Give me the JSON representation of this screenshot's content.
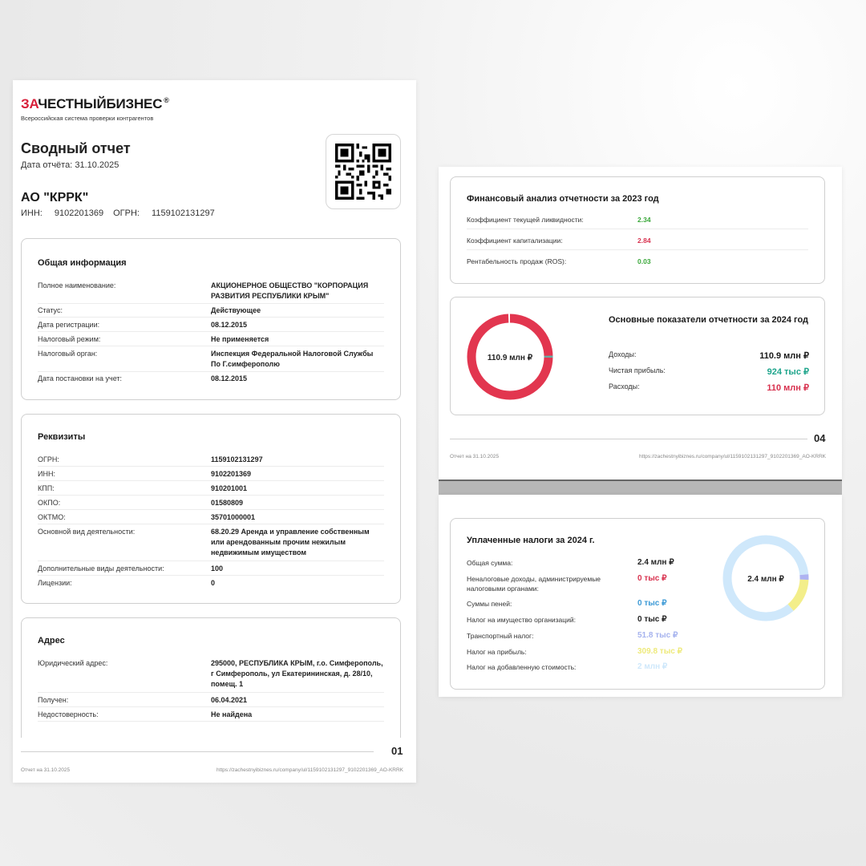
{
  "colors": {
    "brand_red": "#d81f3a",
    "green": "#3aa83a",
    "red": "#d8324f",
    "teal": "#1fa58c",
    "ring_red": "#e2364f",
    "ring_blue": "#cfe8fb",
    "ring_yellow": "#f3ee8a",
    "ring_lav": "#aeb3f1"
  },
  "logo": {
    "za": "ЗА",
    "rest": "ЧЕСТНЫЙБИЗНЕС",
    "reg": "®",
    "subtitle": "Всероссийская система проверки контрагентов"
  },
  "report": {
    "title": "Сводный отчет",
    "date_label": "Дата отчёта:",
    "date_value": "31.10.2025",
    "company": "АО \"КРРК\"",
    "inn_label": "ИНН:",
    "inn_value": "9102201369",
    "ogrn_label": "ОГРН:",
    "ogrn_value": "1159102131297",
    "qr_icon": "qr-code-icon"
  },
  "general": {
    "title": "Общая информация",
    "rows": [
      {
        "label": "Полное наименование:",
        "value": "АКЦИОНЕРНОЕ ОБЩЕСТВО \"КОРПОРАЦИЯ РАЗВИТИЯ РЕСПУБЛИКИ КРЫМ\""
      },
      {
        "label": "Статус:",
        "value": "Действующее"
      },
      {
        "label": "Дата регистрации:",
        "value": "08.12.2015"
      },
      {
        "label": "Налоговый режим:",
        "value": "Не применяется"
      },
      {
        "label": "Налоговый орган:",
        "value": "Инспекция Федеральной Налоговой Службы По Г.симферополю"
      },
      {
        "label": "Дата постановки на учет:",
        "value": "08.12.2015"
      }
    ]
  },
  "requisites": {
    "title": "Реквизиты",
    "rows": [
      {
        "label": "ОГРН:",
        "value": "1159102131297"
      },
      {
        "label": "ИНН:",
        "value": "9102201369"
      },
      {
        "label": "КПП:",
        "value": "910201001"
      },
      {
        "label": "ОКПО:",
        "value": "01580809"
      },
      {
        "label": "ОКТМО:",
        "value": "35701000001"
      },
      {
        "label": "Основной вид деятельности:",
        "value": "68.20.29 Аренда и управление собственным или арендованным прочим нежилым недвижимым имуществом"
      },
      {
        "label": "Дополнительные виды деятельности:",
        "value": "100"
      },
      {
        "label": "Лицензии:",
        "value": "0"
      }
    ]
  },
  "address": {
    "title": "Адрес",
    "rows": [
      {
        "label": "Юридический адрес:",
        "value": "295000, РЕСПУБЛИКА КРЫМ, г.о. Симферополь, г Симферополь, ул Екатерининская, д. 28/10, помещ. 1"
      },
      {
        "label": "Получен:",
        "value": "06.04.2021"
      },
      {
        "label": "Недостоверность:",
        "value": "Не найдена"
      }
    ]
  },
  "page1_footer": {
    "page": "01",
    "left": "Отчет на 31.10.2025",
    "right": "https://zachestnyibiznes.ru/company/ul/1159102131297_9102201369_AO-KRRK"
  },
  "financial": {
    "title": "Финансовый анализ отчетности за 2023 год",
    "rows": [
      {
        "label": "Коэффициент текущей ликвидности:",
        "value": "2.34",
        "tone": "green"
      },
      {
        "label": "Коэффициент капитализации:",
        "value": "2.84",
        "tone": "red"
      },
      {
        "label": "Рентабельность продаж (ROS):",
        "value": "0.03",
        "tone": "green"
      }
    ]
  },
  "key_indicators": {
    "title": "Основные показатели отчетности за 2024 год",
    "center": "110.9 млн ₽",
    "rows": [
      {
        "label": "Доходы:",
        "value": "110.9 млн ₽"
      },
      {
        "label": "Чистая прибыль:",
        "value": "924 тыс ₽"
      },
      {
        "label": "Расходы:",
        "value": "110 млн ₽"
      }
    ],
    "ring": {
      "expenses_share": 0.992,
      "profit_share": 0.008
    }
  },
  "page4_footer": {
    "page": "04",
    "left": "Отчет на 31.10.2025",
    "right": "https://zachestnyibiznes.ru/company/ul/1159102131297_9102201369_AO-KRRK"
  },
  "taxes": {
    "title": "Уплаченные налоги за 2024 г.",
    "center": "2.4 млн ₽",
    "rows": [
      {
        "label": "Общая сумма:",
        "value": "2.4 млн ₽",
        "color": "#222222"
      },
      {
        "label": "Неналоговые доходы, администрируемые налоговыми органами:",
        "value": "0 тыс ₽",
        "color": "#d8324f"
      },
      {
        "label": "Суммы пеней:",
        "value": "0 тыс ₽",
        "color": "#3d9ad6"
      },
      {
        "label": "Налог на имущество организаций:",
        "value": "0 тыс ₽",
        "color": "#222222"
      },
      {
        "label": "Транспортный налог:",
        "value": "51.8 тыс ₽",
        "color": "#a6b3ee"
      },
      {
        "label": "Налог на прибыль:",
        "value": "309.8 тыс ₽",
        "color": "#eeea7c"
      },
      {
        "label": "Налог на добавленную стоимость:",
        "value": "2 млн ₽",
        "color": "#cfe8fb"
      }
    ],
    "ring": {
      "vat_share": 0.848,
      "profit_tax_share": 0.131,
      "transport_share": 0.021
    }
  }
}
